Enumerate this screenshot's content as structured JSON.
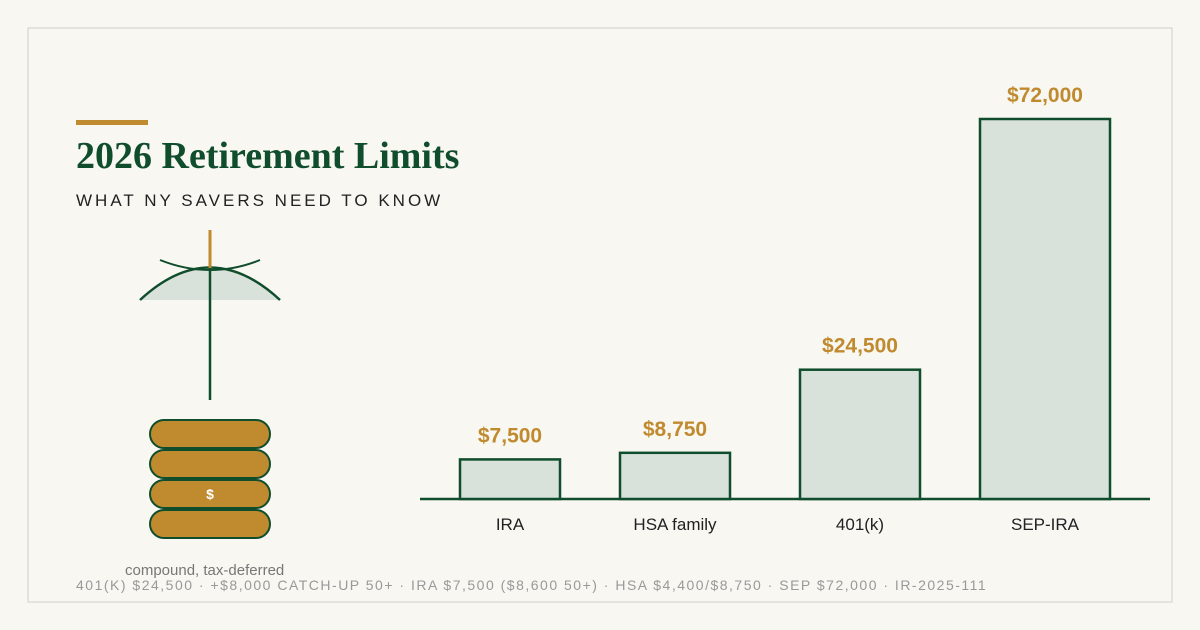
{
  "chart_data": {
    "type": "bar",
    "title": "2026 Retirement Limits",
    "subtitle": "WHAT NY SAVERS NEED TO KNOW",
    "categories": [
      "IRA",
      "HSA family",
      "401(k)",
      "SEP-IRA"
    ],
    "values": [
      7500,
      8750,
      24500,
      72000
    ],
    "value_labels": [
      "$7,500",
      "$8,750",
      "$24,500",
      "$72,000"
    ],
    "color": "#d9e2da"
  },
  "illustration": {
    "caption": "compound, tax-deferred",
    "coin_label": "$"
  },
  "footer": "401(K) $24,500 · +$8,000 CATCH-UP 50+ · IRA $7,500 ($8,600 50+) · HSA $4,400/$8,750 · SEP $72,000 · IR-2025-111"
}
